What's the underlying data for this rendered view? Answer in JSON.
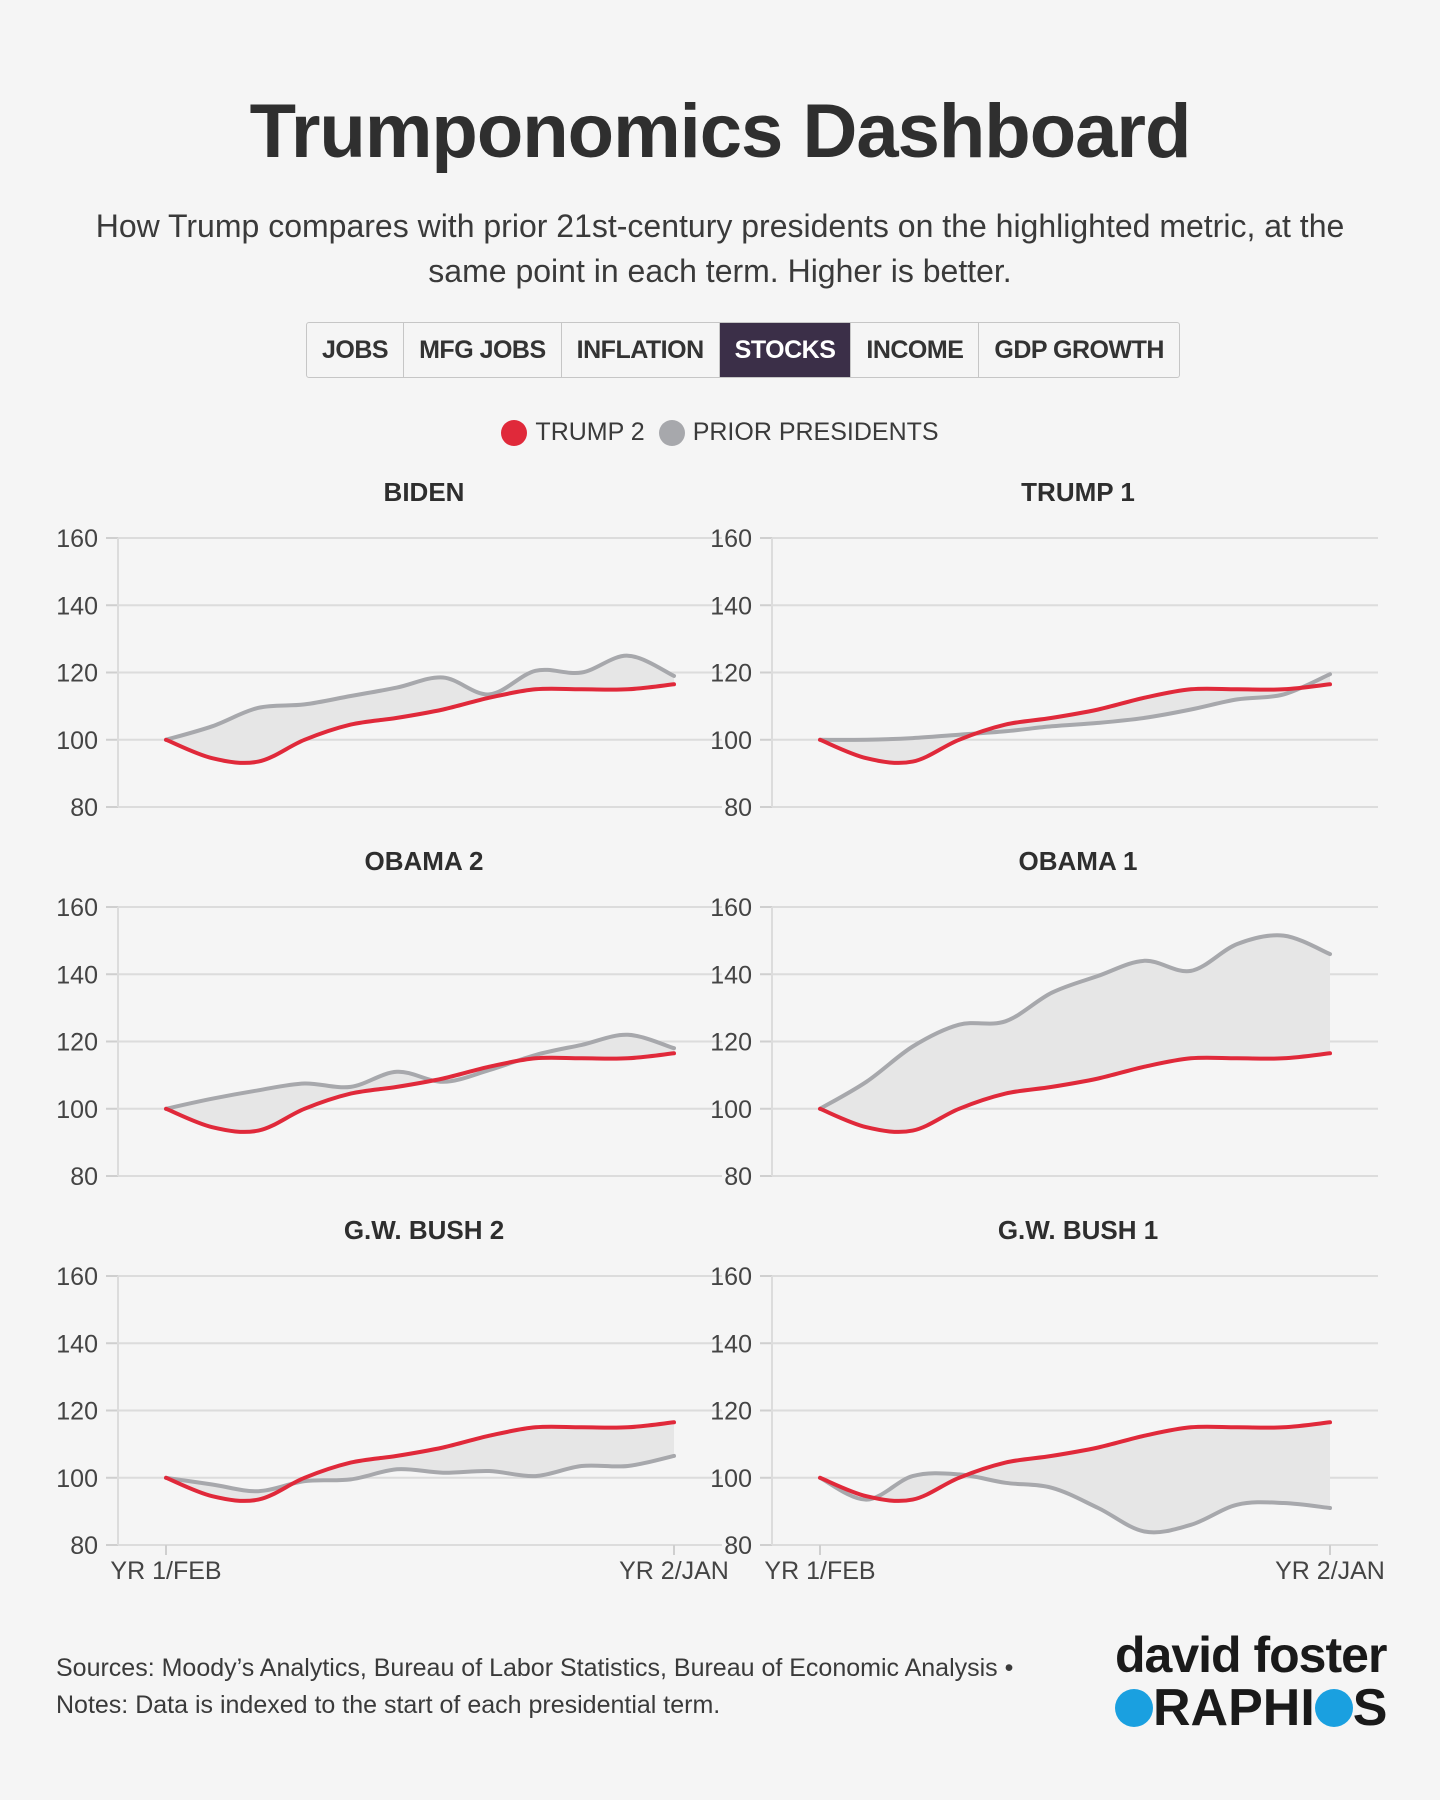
{
  "header": {
    "title": "Trumponomics Dashboard",
    "subtitle": "How Trump compares with prior 21st-century presidents on the highlighted metric, at the same point in each term. Higher is better."
  },
  "tabs": [
    {
      "label": "JOBS",
      "active": false
    },
    {
      "label": "MFG JOBS",
      "active": false
    },
    {
      "label": "INFLATION",
      "active": false
    },
    {
      "label": "STOCKS",
      "active": true
    },
    {
      "label": "INCOME",
      "active": false
    },
    {
      "label": "GDP GROWTH",
      "active": false
    }
  ],
  "legend": {
    "trump2": "TRUMP 2",
    "prior": "PRIOR PRESIDENTS"
  },
  "colors": {
    "trump2": "#e0293a",
    "prior": "#a7a8ac",
    "fill": "#e6e6e6",
    "active_tab": "#3b2f48",
    "logo_accent": "#1aa0e0"
  },
  "chart_data": {
    "type": "line",
    "x_labels": [
      "YR 1/FEB",
      "YR 2/JAN"
    ],
    "x": [
      0,
      1,
      2,
      3,
      4,
      5,
      6,
      7,
      8,
      9,
      10,
      11
    ],
    "yticks": [
      160,
      140,
      120,
      100,
      80
    ],
    "ylim": [
      80,
      160
    ],
    "trump2": [
      100,
      94.5,
      93.5,
      100,
      104.5,
      106.5,
      109,
      112.5,
      115,
      115,
      115,
      116.5
    ],
    "panels": [
      {
        "name": "BIDEN",
        "values": [
          100,
          104,
          109.5,
          110.5,
          113,
          115.5,
          118.5,
          113.5,
          120.5,
          120,
          125,
          119
        ]
      },
      {
        "name": "TRUMP 1",
        "values": [
          100,
          100,
          100.5,
          101.5,
          102.5,
          104,
          105,
          106.5,
          109,
          112,
          113.5,
          119.5
        ]
      },
      {
        "name": "OBAMA 2",
        "values": [
          100,
          103,
          105.5,
          107.5,
          106.5,
          111,
          108,
          111.5,
          116,
          119,
          122,
          118
        ]
      },
      {
        "name": "OBAMA 1",
        "values": [
          100,
          108,
          118.5,
          125,
          126,
          134.5,
          139.5,
          144,
          141,
          149,
          151.5,
          146
        ]
      },
      {
        "name": "G.W. BUSH 2",
        "values": [
          100,
          98,
          96,
          99,
          99.5,
          102.5,
          101.5,
          102,
          100.5,
          103.5,
          103.5,
          106.5
        ]
      },
      {
        "name": "G.W. BUSH 1",
        "values": [
          100,
          93.5,
          100.5,
          101,
          98.5,
          97,
          91,
          84,
          86,
          92,
          92.5,
          91
        ]
      }
    ]
  },
  "footer": {
    "sources": "Sources: Moody’s Analytics, Bureau of Labor Statistics, Bureau of Economic Analysis •",
    "notes": "Notes: Data is indexed to the start of each presidential term."
  },
  "logo": {
    "line1": "david foster",
    "line2_a": "",
    "line2_b": "RAPHI",
    "line2_c": "S"
  }
}
